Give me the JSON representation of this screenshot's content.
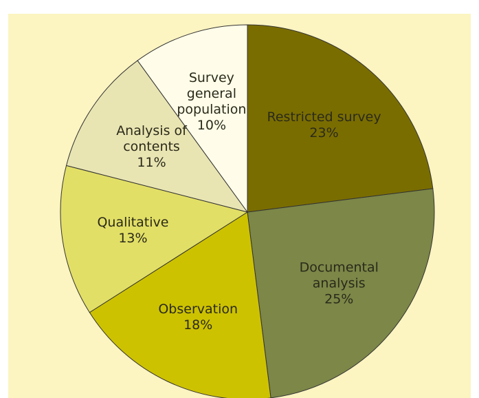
{
  "chart_data": {
    "type": "pie",
    "categories": [
      [
        "Restricted survey"
      ],
      [
        "Documental",
        "analysis"
      ],
      [
        "Observation"
      ],
      [
        "Qualitative"
      ],
      [
        "Analysis of",
        "contents"
      ],
      [
        "Survey",
        "general",
        "population"
      ]
    ],
    "values": [
      23,
      25,
      18,
      13,
      11,
      10
    ],
    "value_labels": [
      "23%",
      "25%",
      "18%",
      "13%",
      "11%",
      "10%"
    ],
    "colors": [
      "#7a6d00",
      "#7c8748",
      "#cdc200",
      "#e2df66",
      "#e9e5b3",
      "#fffde9"
    ]
  }
}
